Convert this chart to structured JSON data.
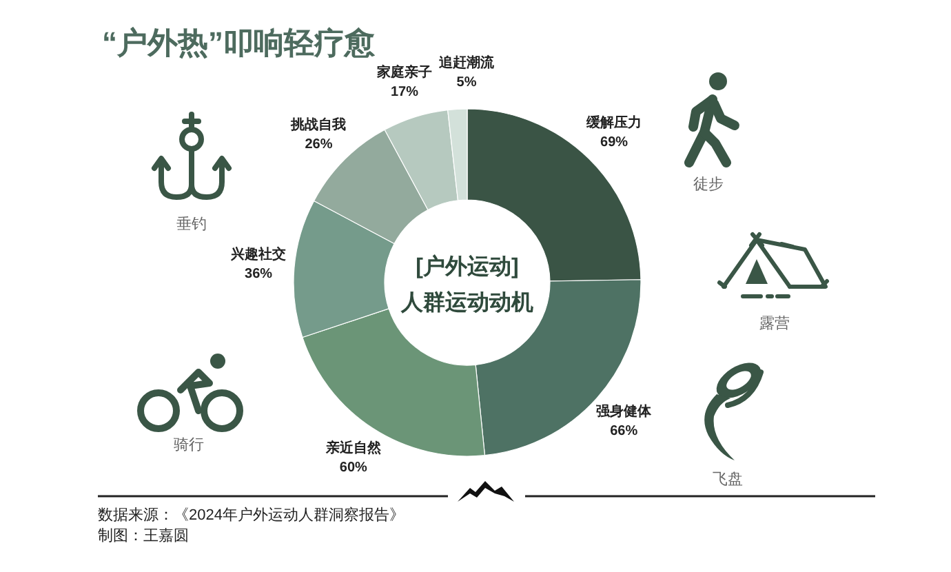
{
  "chart_data": {
    "type": "donut",
    "title": "“户外热”叩响轻疗愈",
    "categories": [
      "缓解压力",
      "强身健体",
      "亲近自然",
      "兴趣社交",
      "挑战自我",
      "家庭亲子",
      "追赶潮流"
    ],
    "values": [
      69,
      66,
      60,
      36,
      26,
      17,
      5
    ],
    "value_labels": [
      "69%",
      "66%",
      "60%",
      "36%",
      "26%",
      "17%",
      "5%"
    ],
    "colors": [
      "#3a5445",
      "#4e7264",
      "#6b9577",
      "#759b8b",
      "#93aa9d",
      "#b6c9bf",
      "#d3e1da"
    ],
    "annotations": [
      "[户外运动]",
      "人群运动动机",
      "垂钓",
      "徒步",
      "露营",
      "骑行",
      "飞盘",
      "数据来源：《2024年户外运动人群洞察报告》",
      "制图：王嘉圆"
    ]
  }
}
